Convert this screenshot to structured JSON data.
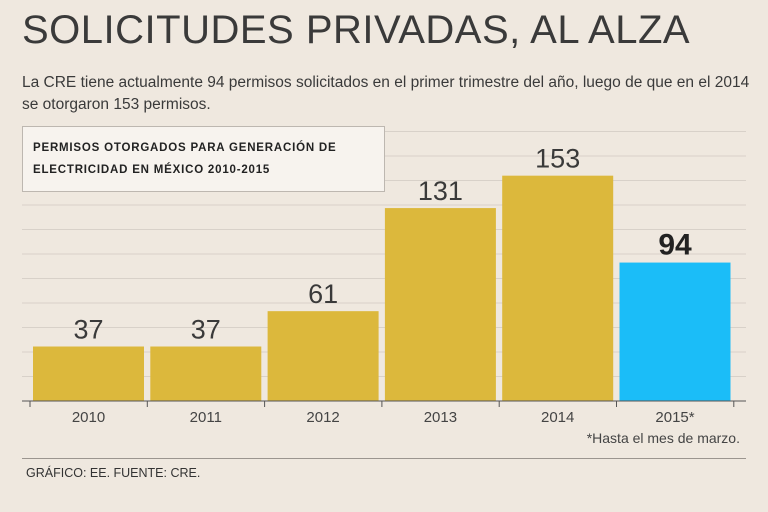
{
  "header": {
    "title": "SOLICITUDES PRIVADAS, AL ALZA",
    "subtitle": "La CRE tiene actualmente 94 permisos solicitados en el primer trimestre del año, luego de que en el 2014 se otorgaron 153 permisos."
  },
  "footer": {
    "footnote": "*Hasta el mes de marzo.",
    "credits": "GRÁFICO: EE. FUENTE: CRE."
  },
  "colors": {
    "bar": "#dcb83c",
    "highlight": "#1bbdf8",
    "grid": "#d8d1c9",
    "axis": "#555555"
  },
  "chart_data": {
    "type": "bar",
    "title": "PERMISOS OTORGADOS PARA GENERACIÓN DE ELECTRICIDAD EN MÉXICO 2010-2015",
    "title_lines": [
      "PERMISOS OTORGADOS PARA GENERACIÓN DE",
      "ELECTRICIDAD EN MÉXICO 2010-2015"
    ],
    "categories": [
      "2010",
      "2011",
      "2012",
      "2013",
      "2014",
      "2015*"
    ],
    "values": [
      37,
      37,
      61,
      131,
      153,
      94
    ],
    "highlight_index": 5,
    "ylim": [
      0,
      165
    ],
    "xlabel": "",
    "ylabel": "",
    "grid": true
  }
}
